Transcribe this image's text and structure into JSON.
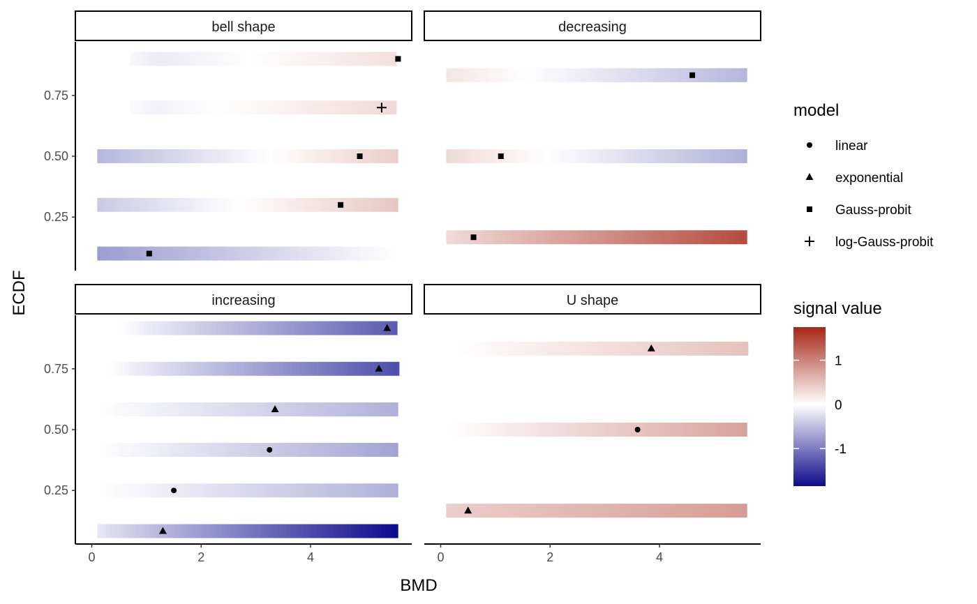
{
  "chart_data": {
    "type": "heatmap",
    "xlabel": "BMD",
    "ylabel": "ECDF",
    "xlim": [
      -0.3,
      5.85
    ],
    "ylim": [
      0.03,
      0.97
    ],
    "x_ticks": [
      "0",
      "2",
      "4"
    ],
    "y_ticks": [
      "0.25",
      "0.50",
      "0.75"
    ],
    "x_tick_values": [
      0,
      2,
      4
    ],
    "y_tick_values": [
      0.25,
      0.5,
      0.75
    ],
    "grid": false,
    "legend_position": "right",
    "color_scale": {
      "title": "signal value",
      "low": "#0d0c8c",
      "mid": "#ffffff",
      "high": "#a52717",
      "min": -1.85,
      "max": 1.75,
      "ticks": [
        "1",
        "0",
        "-1"
      ],
      "tick_values": [
        1,
        0,
        -1
      ]
    },
    "shape_legend": {
      "title": "model",
      "items": [
        {
          "label": "linear",
          "shape": "circle"
        },
        {
          "label": "exponential",
          "shape": "triangle"
        },
        {
          "label": "Gauss-probit",
          "shape": "square"
        },
        {
          "label": "log-Gauss-probit",
          "shape": "plus"
        }
      ]
    },
    "facets": [
      {
        "title": "bell shape",
        "rows": [
          {
            "y": 0.9,
            "x_start": 0.7,
            "x_end": 5.6,
            "signal_start": -0.2,
            "signal_end": 0.25,
            "bmd": 5.6,
            "model": "square"
          },
          {
            "y": 0.7,
            "x_start": 0.7,
            "x_end": 5.6,
            "signal_start": -0.15,
            "signal_end": 0.3,
            "bmd": 5.3,
            "model": "plus"
          },
          {
            "y": 0.5,
            "x_start": 0.1,
            "x_end": 5.6,
            "signal_start": -0.55,
            "signal_end": 0.4,
            "bmd": 4.9,
            "model": "square"
          },
          {
            "y": 0.3,
            "x_start": 0.1,
            "x_end": 5.6,
            "signal_start": -0.4,
            "signal_end": 0.45,
            "bmd": 4.55,
            "model": "square"
          },
          {
            "y": 0.1,
            "x_start": 0.1,
            "x_end": 5.6,
            "signal_start": -0.75,
            "signal_end": 0.0,
            "bmd": 1.05,
            "model": "square"
          }
        ]
      },
      {
        "title": "decreasing",
        "rows": [
          {
            "y": 0.833,
            "x_start": 0.1,
            "x_end": 5.6,
            "signal_start": 0.2,
            "signal_end": -0.55,
            "bmd": 4.6,
            "model": "square"
          },
          {
            "y": 0.5,
            "x_start": 0.1,
            "x_end": 5.6,
            "signal_start": 0.3,
            "signal_end": -0.6,
            "bmd": 1.1,
            "model": "square"
          },
          {
            "y": 0.167,
            "x_start": 0.1,
            "x_end": 5.6,
            "signal_start": 0.3,
            "signal_end": 1.45,
            "bmd": 0.6,
            "model": "square"
          }
        ]
      },
      {
        "title": "increasing",
        "rows": [
          {
            "y": 0.917,
            "x_start": 0.4,
            "x_end": 5.6,
            "signal_start": 0.0,
            "signal_end": -1.25,
            "bmd": 5.4,
            "model": "triangle"
          },
          {
            "y": 0.75,
            "x_start": 0.2,
            "x_end": 5.6,
            "signal_start": 0.0,
            "signal_end": -1.35,
            "bmd": 5.25,
            "model": "triangle"
          },
          {
            "y": 0.583,
            "x_start": 0.1,
            "x_end": 5.6,
            "signal_start": 0.0,
            "signal_end": -0.6,
            "bmd": 3.35,
            "model": "triangle"
          },
          {
            "y": 0.417,
            "x_start": 0.1,
            "x_end": 5.6,
            "signal_start": 0.0,
            "signal_end": -0.7,
            "bmd": 3.25,
            "model": "circle"
          },
          {
            "y": 0.25,
            "x_start": 0.1,
            "x_end": 5.6,
            "signal_start": 0.0,
            "signal_end": -0.6,
            "bmd": 1.5,
            "model": "circle"
          },
          {
            "y": 0.083,
            "x_start": 0.1,
            "x_end": 5.6,
            "signal_start": -0.2,
            "signal_end": -1.85,
            "bmd": 1.3,
            "model": "triangle"
          }
        ]
      },
      {
        "title": "U shape",
        "rows": [
          {
            "y": 0.833,
            "x_start": 0.2,
            "x_end": 5.6,
            "signal_start": 0.0,
            "signal_end": 0.5,
            "bmd": 3.85,
            "model": "triangle"
          },
          {
            "y": 0.5,
            "x_start": 0.1,
            "x_end": 5.6,
            "signal_start": 0.0,
            "signal_end": 0.75,
            "bmd": 3.6,
            "model": "circle"
          },
          {
            "y": 0.167,
            "x_start": 0.1,
            "x_end": 5.6,
            "signal_start": 0.4,
            "signal_end": 0.8,
            "bmd": 0.5,
            "model": "triangle"
          }
        ]
      }
    ]
  }
}
